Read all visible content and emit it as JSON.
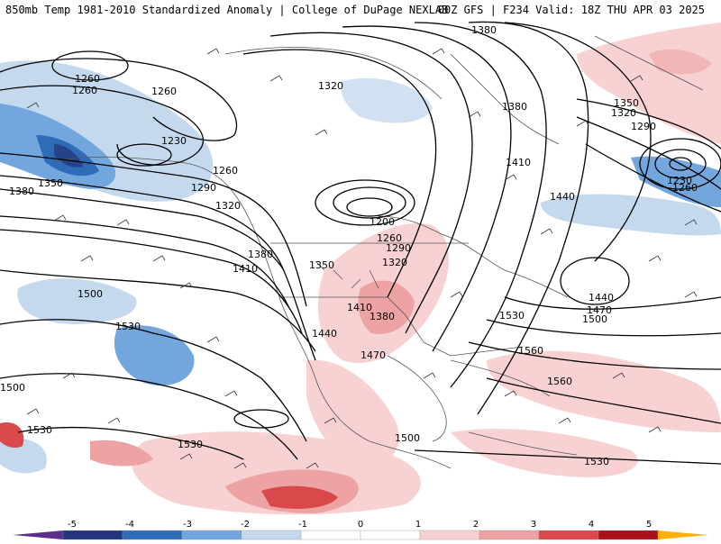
{
  "header": {
    "left": "850mb Temp 1981-2010 Standardized Anomaly | College of DuPage NEXLAB",
    "right": "00Z GFS | F234 Valid: 18Z THU APR 03 2025"
  },
  "colors": {
    "neg5": "#5c2e8c",
    "neg4": "#23357a",
    "neg3": "#2f6cb8",
    "neg2": "#72a6dd",
    "neg1": "#c5d9ee",
    "zero": "#ffffff",
    "pos1": "#f8d2d2",
    "pos2": "#eda3a3",
    "pos3": "#d9484a",
    "pos4": "#a7111a",
    "pos5": "#ffb000"
  },
  "colorbar": {
    "ticks": [
      "-5",
      "-4",
      "-3",
      "-2",
      "-1",
      "0",
      "1",
      "2",
      "3",
      "4",
      "5"
    ]
  },
  "contour_labels": [
    "1380",
    "1260",
    "1260",
    "1260",
    "1320",
    "1230",
    "1260",
    "1350",
    "1380",
    "1290",
    "1320",
    "1380",
    "1410",
    "1440",
    "1200",
    "1260",
    "1290",
    "1320",
    "1380",
    "1350",
    "1410",
    "1380",
    "1410",
    "1440",
    "1470",
    "1500",
    "1530",
    "1530",
    "1500",
    "1560",
    "1560",
    "1500",
    "1530",
    "1530",
    "1440",
    "1470",
    "1500",
    "1350",
    "1320",
    "1290",
    "1230",
    "1260",
    "1500",
    "1530"
  ]
}
